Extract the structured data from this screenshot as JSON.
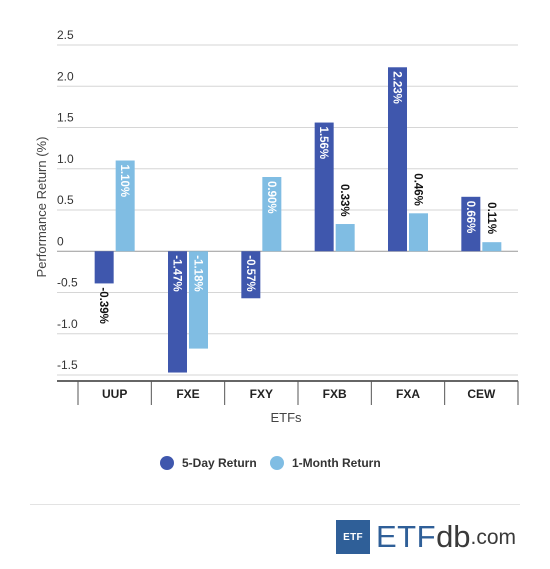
{
  "chart_data": {
    "type": "bar",
    "title": "",
    "xlabel": "ETFs",
    "ylabel": "Performance Return (%)",
    "ylim": [
      -1.5,
      2.5
    ],
    "yticks": [
      2.5,
      2.0,
      1.5,
      1.0,
      0.5,
      0,
      -0.5,
      -1.0,
      -1.5
    ],
    "ytick_labels": [
      "2.5",
      "2.0",
      "1.5",
      "1.0",
      "0.5",
      "0",
      "-0.5",
      "-1.0",
      "-1.5"
    ],
    "categories": [
      "UUP",
      "FXE",
      "FXY",
      "FXB",
      "FXA",
      "CEW"
    ],
    "series": [
      {
        "name": "5-Day Return",
        "color": "#3f57ad",
        "values": [
          -0.39,
          -1.47,
          -0.57,
          1.56,
          2.23,
          0.66
        ],
        "labels": [
          "-0.39%",
          "-1.47%",
          "-0.57%",
          "1.56%",
          "2.23%",
          "0.66%"
        ]
      },
      {
        "name": "1-Month Return",
        "color": "#80bde3",
        "values": [
          1.1,
          -1.18,
          0.9,
          0.33,
          0.46,
          0.11
        ],
        "labels": [
          "1.10%",
          "-1.18%",
          "0.90%",
          "0.33%",
          "0.46%",
          "0.11%"
        ]
      }
    ],
    "grid": true,
    "legend_position": "bottom"
  },
  "brand": {
    "box": "ETF",
    "etf": "ETF",
    "db": "db",
    "com": ".com"
  }
}
